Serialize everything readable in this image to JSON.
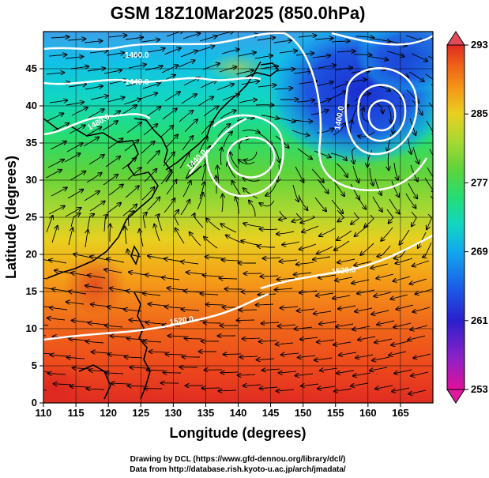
{
  "title": "GSM 18Z10Mar2025 (850.0hPa)",
  "x_axis": {
    "label": "Longitude (degrees)",
    "range": [
      110,
      170
    ],
    "ticks": [
      "110",
      "115",
      "120",
      "125",
      "130",
      "135",
      "140",
      "145",
      "150",
      "155",
      "160",
      "165"
    ]
  },
  "y_axis": {
    "label": "Latitude  (degrees)",
    "range": [
      0,
      50
    ],
    "ticks": [
      "0",
      "5",
      "10",
      "15",
      "20",
      "25",
      "30",
      "35",
      "40",
      "45"
    ]
  },
  "colorbar": {
    "range": [
      253,
      293
    ],
    "ticks": [
      "293",
      "285",
      "277",
      "269",
      "261",
      "253"
    ],
    "colors": [
      "#e0109a",
      "#8f21c6",
      "#2b1fcc",
      "#1a60e8",
      "#12a8ee",
      "#12d6c2",
      "#26dd72",
      "#5fd33b",
      "#a8d832",
      "#e8d020",
      "#f59a18",
      "#ee6218",
      "#e02c22"
    ]
  },
  "contour_labels": [
    "1400.0",
    "1440.0",
    "1480.0",
    "1440.0",
    "1400.0",
    "1520.0",
    "1520.0"
  ],
  "credits": [
    "Drawing by DCL (https://www.gfd-dennou.org/library/dcl/)",
    "Data from http://database.rish.kyoto-u.ac.jp/arch/jmadata/"
  ],
  "map_features": {
    "features": [
      "temperature-shading",
      "geopotential-contours",
      "wind-streamlines",
      "coastlines",
      "graticule"
    ],
    "low_pressure_centers": [
      [
        141,
        35
      ],
      [
        161,
        40
      ]
    ]
  }
}
